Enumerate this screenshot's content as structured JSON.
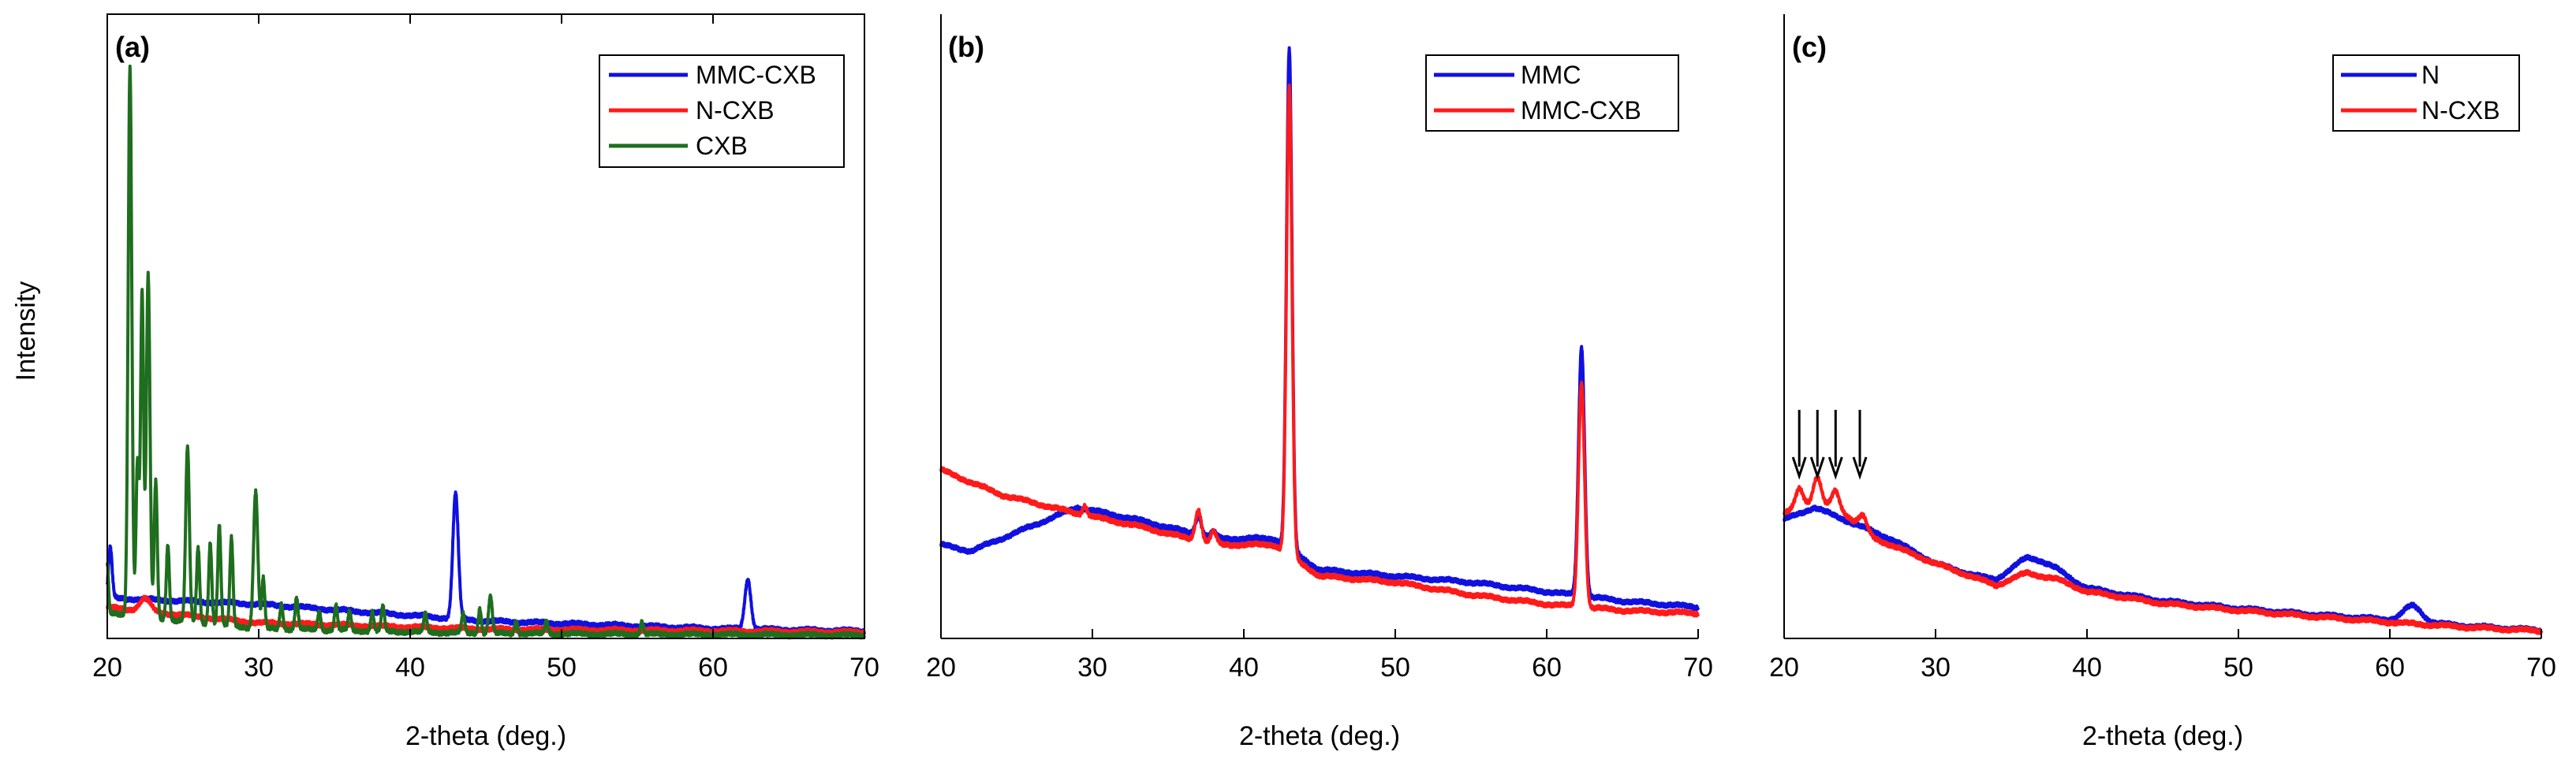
{
  "figure": {
    "ylabel": "Intensity",
    "xlabel": "2-theta (deg.)"
  },
  "colors": {
    "blue": "#1010e0",
    "red": "#ff1a1a",
    "green": "#1e6e1e",
    "axis": "#000000"
  },
  "chart_data": [
    {
      "id": "a",
      "type": "line",
      "panel_label": "(a)",
      "xlabel": "2-theta (deg.)",
      "ylabel": "Intensity",
      "xlim": [
        20,
        70
      ],
      "ylim": [
        0,
        100
      ],
      "xticks": [
        20,
        30,
        40,
        50,
        60,
        70
      ],
      "tick_labels": [
        "20",
        "30",
        "40",
        "50",
        "60",
        "70"
      ],
      "legend_position": "top-right",
      "series": [
        {
          "name": "MMC-CXB",
          "color": "#1010e0",
          "peaks": [
            [
              20.2,
              8,
              0.12
            ],
            [
              43.0,
              20,
              0.18
            ],
            [
              62.3,
              8,
              0.2
            ]
          ],
          "baseline": [
            [
              20,
              6.5
            ],
            [
              30,
              5.5
            ],
            [
              45,
              2.8
            ],
            [
              60,
              1.6
            ],
            [
              70,
              1.2
            ]
          ]
        },
        {
          "name": "N-CXB",
          "color": "#ff1a1a",
          "peaks": [
            [
              22.5,
              2,
              0.35
            ]
          ],
          "baseline": [
            [
              20,
              5
            ],
            [
              30,
              2.5
            ],
            [
              45,
              1.5
            ],
            [
              70,
              1.0
            ]
          ]
        },
        {
          "name": "CXB",
          "color": "#1e6e1e",
          "peaks": [
            [
              20.0,
              8,
              0.08
            ],
            [
              21.5,
              88,
              0.12
            ],
            [
              22.0,
              25,
              0.1
            ],
            [
              22.3,
              52,
              0.1
            ],
            [
              22.7,
              55,
              0.12
            ],
            [
              23.2,
              22,
              0.1
            ],
            [
              24.0,
              12,
              0.1
            ],
            [
              25.3,
              28,
              0.12
            ],
            [
              26.0,
              12,
              0.1
            ],
            [
              26.8,
              13,
              0.1
            ],
            [
              27.4,
              16,
              0.1
            ],
            [
              28.2,
              14,
              0.1
            ],
            [
              29.8,
              22,
              0.14
            ],
            [
              30.3,
              8,
              0.1
            ],
            [
              31.5,
              4,
              0.1
            ],
            [
              32.5,
              5,
              0.1
            ],
            [
              34.0,
              3,
              0.1
            ],
            [
              35.1,
              4,
              0.1
            ],
            [
              36.0,
              3,
              0.1
            ],
            [
              37.5,
              3,
              0.1
            ],
            [
              38.2,
              4,
              0.1
            ],
            [
              41.0,
              3,
              0.1
            ],
            [
              43.5,
              3,
              0.1
            ],
            [
              44.6,
              4,
              0.1
            ],
            [
              45.3,
              6,
              0.12
            ],
            [
              47.0,
              2,
              0.1
            ],
            [
              49.0,
              2,
              0.1
            ],
            [
              55.3,
              2,
              0.1
            ]
          ],
          "baseline": [
            [
              20,
              4
            ],
            [
              30,
              1.6
            ],
            [
              45,
              0.8
            ],
            [
              70,
              0.5
            ]
          ]
        }
      ]
    },
    {
      "id": "b",
      "type": "line",
      "panel_label": "(b)",
      "xlabel": "2-theta (deg.)",
      "ylabel": "Intensity",
      "xlim": [
        20,
        70
      ],
      "ylim": [
        0,
        100
      ],
      "xticks": [
        20,
        30,
        40,
        50,
        60,
        70
      ],
      "tick_labels": [
        "20",
        "30",
        "40",
        "50",
        "60",
        "70"
      ],
      "legend_position": "top-right",
      "series": [
        {
          "name": "MMC",
          "color": "#1010e0",
          "peaks": [
            [
              37.0,
              3,
              0.2
            ],
            [
              38.0,
              1,
              0.2
            ],
            [
              43.0,
              80,
              0.18
            ],
            [
              62.3,
              40,
              0.2
            ]
          ],
          "baseline": [
            [
              20,
              15
            ],
            [
              22,
              14
            ],
            [
              25,
              17
            ],
            [
              29,
              21
            ],
            [
              33,
              19
            ],
            [
              38,
              16
            ],
            [
              42,
              16
            ],
            [
              45,
              11
            ],
            [
              50,
              10
            ],
            [
              55,
              9
            ],
            [
              60,
              7.5
            ],
            [
              65,
              6
            ],
            [
              70,
              5
            ]
          ]
        },
        {
          "name": "MMC-CXB",
          "color": "#ff1a1a",
          "peaks": [
            [
              29.5,
              1.5,
              0.15
            ],
            [
              37.0,
              5,
              0.2
            ],
            [
              38.0,
              2,
              0.2
            ],
            [
              43.0,
              75,
              0.18
            ],
            [
              62.3,
              36,
              0.2
            ]
          ],
          "baseline": [
            [
              20,
              27
            ],
            [
              24,
              23
            ],
            [
              29,
              20
            ],
            [
              33,
              18
            ],
            [
              38,
              15
            ],
            [
              42,
              15
            ],
            [
              45,
              10
            ],
            [
              50,
              9
            ],
            [
              55,
              7
            ],
            [
              60,
              5.5
            ],
            [
              65,
              4.5
            ],
            [
              70,
              4
            ]
          ]
        }
      ]
    },
    {
      "id": "c",
      "type": "line",
      "panel_label": "(c)",
      "xlabel": "2-theta (deg.)",
      "ylabel": "Intensity",
      "xlim": [
        20,
        70
      ],
      "ylim": [
        0,
        100
      ],
      "xticks": [
        20,
        30,
        40,
        50,
        60,
        70
      ],
      "tick_labels": [
        "20",
        "30",
        "40",
        "50",
        "60",
        "70"
      ],
      "legend_position": "top-right",
      "annotations": [
        {
          "type": "arrow",
          "x": 21.0
        },
        {
          "type": "arrow",
          "x": 22.2
        },
        {
          "type": "arrow",
          "x": 23.4
        },
        {
          "type": "arrow",
          "x": 25.0
        }
      ],
      "series": [
        {
          "name": "N",
          "color": "#1010e0",
          "peaks": [
            [
              36.5,
              2,
              1.5
            ],
            [
              61.5,
              2.5,
              0.6
            ]
          ],
          "baseline": [
            [
              20,
              19
            ],
            [
              22,
              21
            ],
            [
              24,
              19
            ],
            [
              27,
              16
            ],
            [
              30,
              12
            ],
            [
              34,
              9
            ],
            [
              36,
              11
            ],
            [
              38,
              10
            ],
            [
              40,
              8
            ],
            [
              45,
              6
            ],
            [
              50,
              4.8
            ],
            [
              55,
              3.8
            ],
            [
              60,
              3
            ],
            [
              65,
              2
            ],
            [
              70,
              1.3
            ]
          ]
        },
        {
          "name": "N-CXB",
          "color": "#ff1a1a",
          "peaks": [
            [
              21.0,
              3,
              0.25
            ],
            [
              22.2,
              4,
              0.25
            ],
            [
              23.4,
              3,
              0.25
            ],
            [
              25.2,
              2,
              0.25
            ]
          ],
          "baseline": [
            [
              20,
              20
            ],
            [
              22,
              22
            ],
            [
              24,
              20
            ],
            [
              26,
              16
            ],
            [
              30,
              12
            ],
            [
              34,
              8.5
            ],
            [
              36,
              10.5
            ],
            [
              38,
              9.5
            ],
            [
              40,
              7.5
            ],
            [
              45,
              5.6
            ],
            [
              50,
              4.5
            ],
            [
              55,
              3.5
            ],
            [
              60,
              2.6
            ],
            [
              65,
              1.8
            ],
            [
              70,
              1.2
            ]
          ]
        }
      ]
    }
  ]
}
